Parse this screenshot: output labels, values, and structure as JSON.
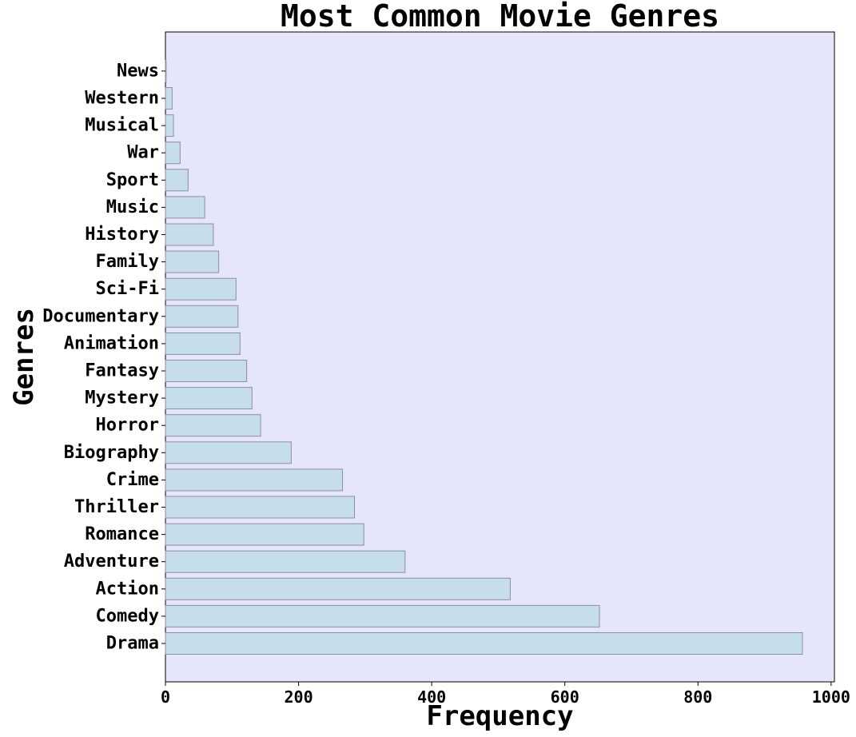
{
  "chart_data": {
    "type": "bar",
    "orientation": "horizontal",
    "title": "Most Common Movie Genres",
    "xlabel": "Frequency",
    "ylabel": "Genres",
    "categories": [
      "Drama",
      "Comedy",
      "Action",
      "Adventure",
      "Romance",
      "Thriller",
      "Crime",
      "Biography",
      "Horror",
      "Mystery",
      "Fantasy",
      "Animation",
      "Documentary",
      "Sci-Fi",
      "Family",
      "History",
      "Music",
      "Sport",
      "War",
      "Musical",
      "Western",
      "News"
    ],
    "values": [
      957,
      652,
      518,
      360,
      298,
      284,
      266,
      189,
      143,
      130,
      122,
      112,
      109,
      106,
      80,
      72,
      59,
      34,
      22,
      12,
      10,
      1
    ],
    "xlim": [
      0,
      1005
    ],
    "xticks": [
      0,
      200,
      400,
      600,
      800,
      1000
    ],
    "grid": false,
    "legend": "none",
    "colors": {
      "plot_background": "#e6e6fa",
      "bar_fill": "#c6ddea",
      "bar_edge": "#8a8fa4",
      "axis": "#000000"
    }
  }
}
